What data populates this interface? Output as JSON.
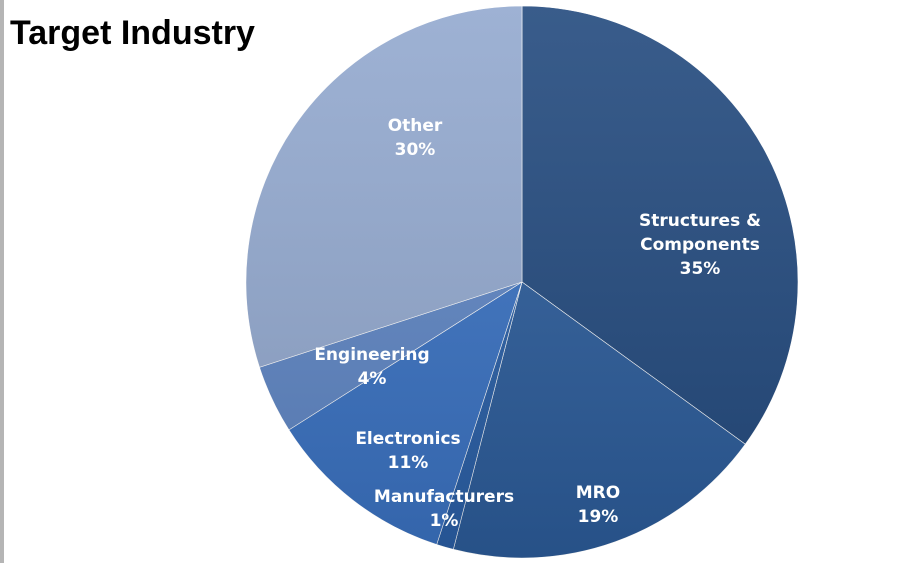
{
  "title": "Target Industry",
  "chart_data": {
    "type": "pie",
    "title": "Target Industry",
    "legend": "none",
    "slices": [
      {
        "label_lines": [
          "Structures &",
          "Components"
        ],
        "pct_label": "35%",
        "value": 35,
        "color": "#234a7e"
      },
      {
        "label_lines": [
          "MRO"
        ],
        "pct_label": "19%",
        "value": 19,
        "color": "#2c5c9a"
      },
      {
        "label_lines": [
          "Manufacturers"
        ],
        "pct_label": "1%",
        "value": 1,
        "color": "#2a5fa6"
      },
      {
        "label_lines": [
          "Electronics"
        ],
        "pct_label": "11%",
        "value": 11,
        "color": "#3a72c2"
      },
      {
        "label_lines": [
          "Engineering"
        ],
        "pct_label": "4%",
        "value": 4,
        "color": "#5f86c4"
      },
      {
        "label_lines": [
          "Other"
        ],
        "pct_label": "30%",
        "value": 30,
        "color": "#93a9cf"
      }
    ]
  }
}
